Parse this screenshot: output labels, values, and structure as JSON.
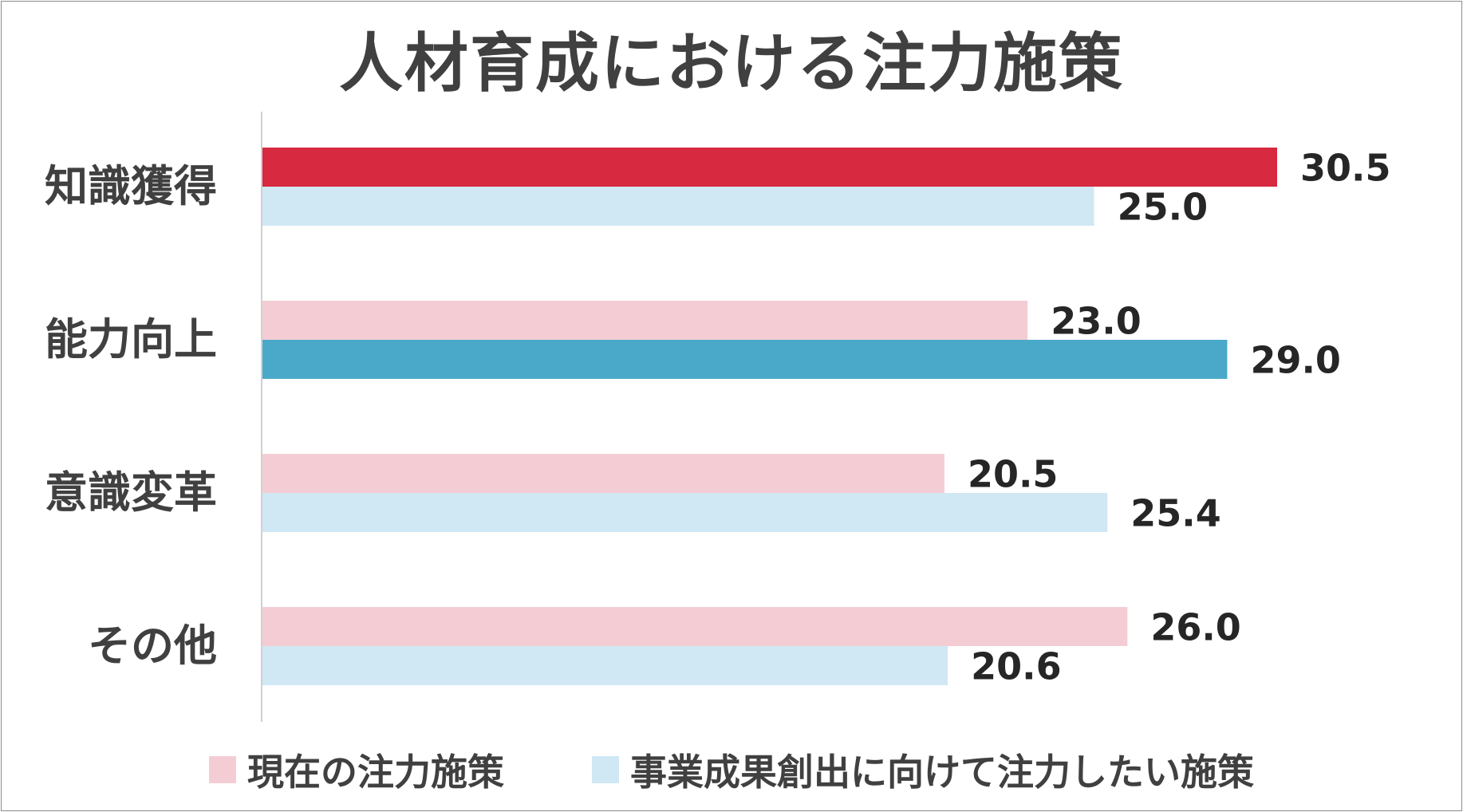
{
  "chart_data": {
    "type": "bar",
    "orientation": "horizontal",
    "title": "人材育成における注力施策",
    "categories": [
      "知識獲得",
      "能力向上",
      "意識変革",
      "その他"
    ],
    "series": [
      {
        "name": "現在の注力施策",
        "values": [
          30.5,
          23.0,
          20.5,
          26.0
        ],
        "labels": [
          "30.5",
          "23.0",
          "20.5",
          "26.0"
        ],
        "color": "#f4cdd4"
      },
      {
        "name": "事業成果創出に向けて注力したい施策",
        "values": [
          25.0,
          29.0,
          25.4,
          20.6
        ],
        "labels": [
          "25.0",
          "29.0",
          "25.4",
          "20.6"
        ],
        "color": "#d0e8f4"
      }
    ],
    "highlights": [
      {
        "series": 0,
        "category": 0,
        "color": "#d72940"
      },
      {
        "series": 1,
        "category": 1,
        "color": "#4aa9c8"
      }
    ],
    "xlim": [
      0,
      35
    ],
    "grid": false,
    "legend_position": "bottom"
  }
}
